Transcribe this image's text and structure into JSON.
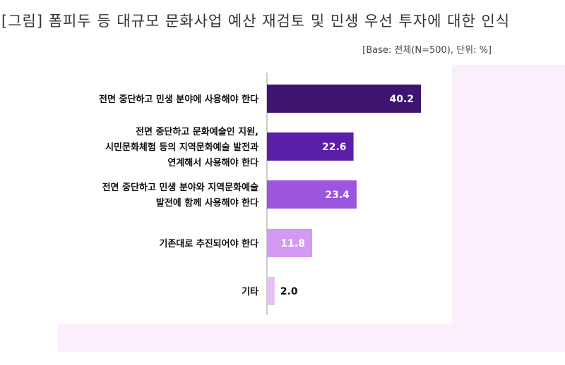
{
  "header": {
    "title": "[그림] 폼피두 등 대규모 문화사업 예산 재검토 및 민생 우선 투자에 대한 인식",
    "base_note": "[Base: 전체(N=500), 단위: %]"
  },
  "chart_data": {
    "type": "bar",
    "orientation": "horizontal",
    "title": "[그림] 폼피두 등 대규모 문화사업 예산 재검토 및 민생 우선 투자에 대한 인식",
    "subtitle": "[Base: 전체(N=500), 단위: %]",
    "categories": [
      [
        "전면 중단하고 민생 분야에 사용해야 한다"
      ],
      [
        "전면 중단하고 문화예술인 지원,",
        "시민문화체험 등의 지역문화예술 발전과",
        "연계해서 사용해야 한다"
      ],
      [
        "전면 중단하고 민생 분야와 지역문화예술",
        "발전에 함께 사용해야 한다"
      ],
      [
        "기존대로 추진되어야 한다"
      ],
      [
        "기타"
      ]
    ],
    "values": [
      40.2,
      22.6,
      23.4,
      11.8,
      2.0
    ],
    "value_labels": [
      "40.2",
      "22.6",
      "23.4",
      "11.8",
      "2.0"
    ],
    "colors": [
      "#3e1470",
      "#5a1ea8",
      "#9b55de",
      "#d29af2",
      "#e7c0f7"
    ],
    "label_colors": [
      "#ffffff",
      "#ffffff",
      "#ffffff",
      "#ffffff",
      "#111111"
    ],
    "xlim": [
      0,
      40.2
    ],
    "grid": false,
    "legend": "none"
  }
}
